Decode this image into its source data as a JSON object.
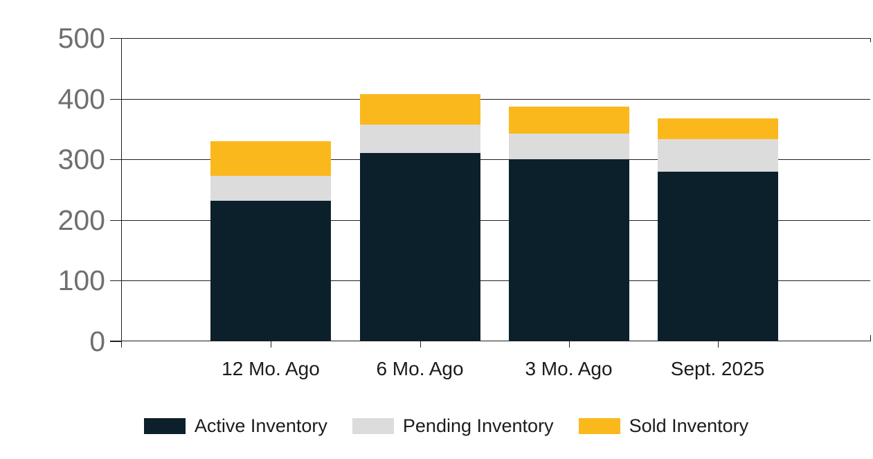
{
  "chart_data": {
    "type": "bar",
    "stacked": true,
    "title": "",
    "categories": [
      "12 Mo. Ago",
      "6 Mo. Ago",
      "3 Mo. Ago",
      "Sept. 2025"
    ],
    "series": [
      {
        "name": "Active Inventory",
        "color": "#0c202b",
        "values": [
          232,
          311,
          300,
          280
        ]
      },
      {
        "name": "Pending Inventory",
        "color": "#dcdcdc",
        "values": [
          41,
          46,
          42,
          53
        ]
      },
      {
        "name": "Sold Inventory",
        "color": "#fbb81c",
        "values": [
          57,
          51,
          45,
          35
        ]
      }
    ],
    "ylim": [
      0,
      500
    ],
    "y_ticks": [
      0,
      100,
      200,
      300,
      400,
      500
    ],
    "grid": true,
    "legend_position": "bottom",
    "colors": {
      "grid_line": "#1f1f1f",
      "axis_line": "#1f1f1f",
      "y_tick_label": "#6f6f6f",
      "x_tick_label": "#1c1c1c",
      "legend_text": "#1c1c1c",
      "background": "#ffffff"
    }
  }
}
